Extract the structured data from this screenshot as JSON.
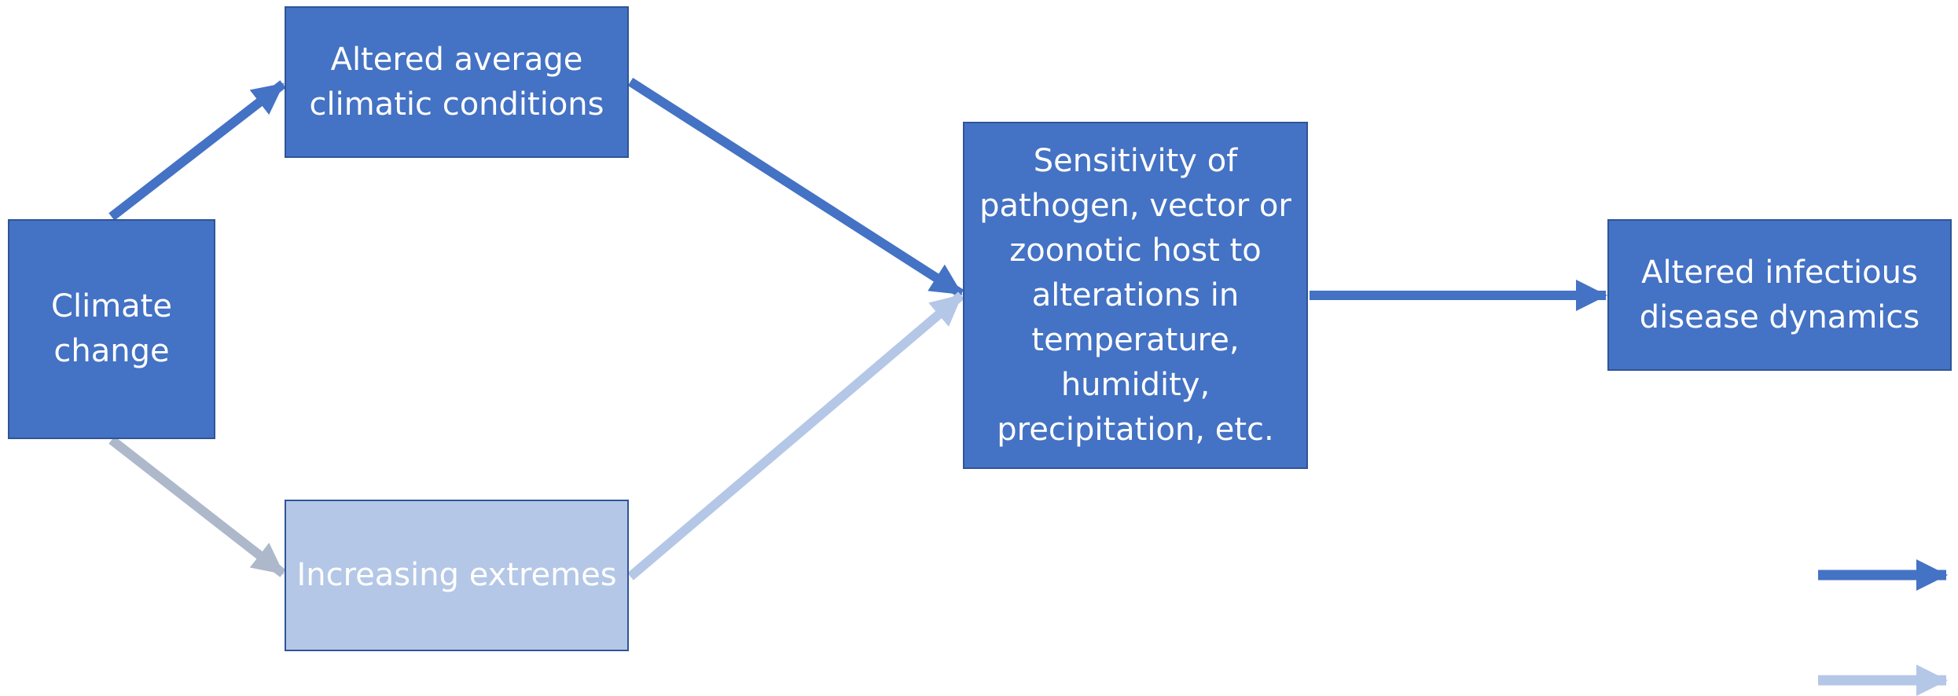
{
  "nodes": {
    "climate": "Climate\nchange",
    "average": "Altered average\nclimatic conditions",
    "extremes": "Increasing extremes",
    "sensitivity": "Sensitivity of\npathogen, vector or\nzoonotic host to\nalterations in\ntemperature,\nhumidity,\nprecipitation, etc.",
    "altered": "Altered infectious\ndisease dynamics"
  },
  "colors": {
    "dark_fill": "#4472c4",
    "light_fill": "#b4c7e7",
    "border": "#2f5597",
    "dark_arrow": "#4472c4",
    "light_arrow": "#b4c7e7",
    "gray_arrow": "#adb9ca"
  }
}
